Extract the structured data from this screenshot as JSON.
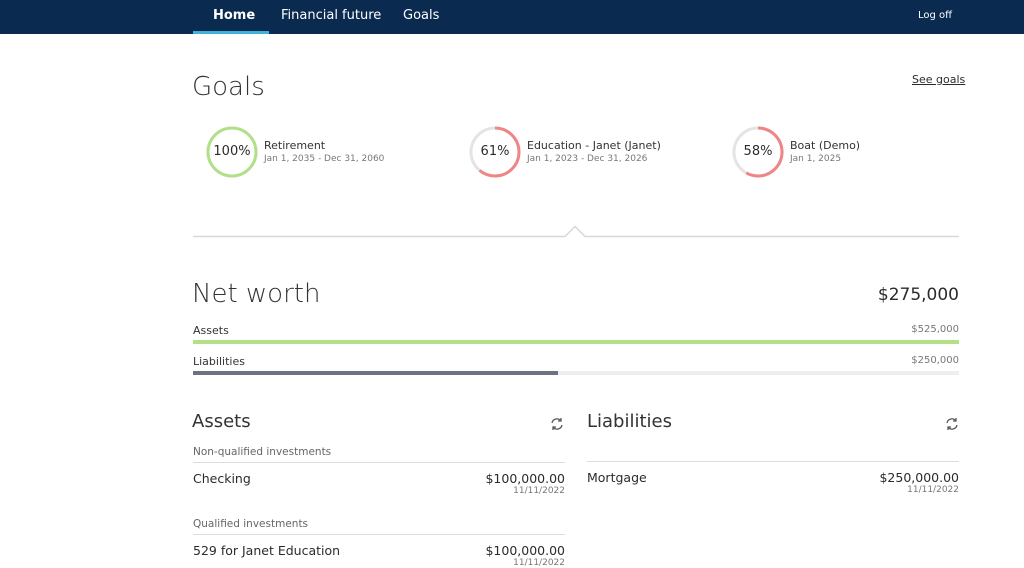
{
  "nav": {
    "items": [
      "Home",
      "Financial future",
      "Goals"
    ],
    "logoff": "Log off"
  },
  "goals": {
    "title": "Goals",
    "link": "See goals",
    "items": [
      {
        "value": 100,
        "label": "100%",
        "name": "Retirement",
        "dates": "Jan 1, 2035 - Dec 31, 2060",
        "color": "#b3df86"
      },
      {
        "value": 61,
        "label": "61%",
        "name": "Education - Janet (Janet)",
        "dates": "Jan 1, 2023 - Dec 31, 2026",
        "color": "#ef8585"
      },
      {
        "value": 58,
        "label": "58%",
        "name": "Boat (Demo)",
        "dates": "Jan 1, 2025",
        "color": "#ef8585"
      }
    ]
  },
  "net_worth": {
    "title": "Net worth",
    "total": "$275,000",
    "assets": {
      "label": "Assets",
      "value": 525000,
      "value_label": "$525,000",
      "color": "#b3df86"
    },
    "liabilities": {
      "label": "Liabilities",
      "value": 250000,
      "value_label": "$250,000",
      "color": "#6c7280"
    }
  },
  "assets": {
    "title": "Assets",
    "groups": [
      {
        "heading": "Non-qualified investments",
        "items": [
          {
            "name": "Checking",
            "amount": "$100,000.00",
            "date": "11/11/2022"
          }
        ]
      },
      {
        "heading": "Qualified investments",
        "items": [
          {
            "name": "529 for Janet Education",
            "amount": "$100,000.00",
            "date": "11/11/2022"
          }
        ]
      }
    ]
  },
  "liabilities": {
    "title": "Liabilities",
    "items": [
      {
        "name": "Mortgage",
        "amount": "$250,000.00",
        "date": "11/11/2022"
      }
    ]
  }
}
